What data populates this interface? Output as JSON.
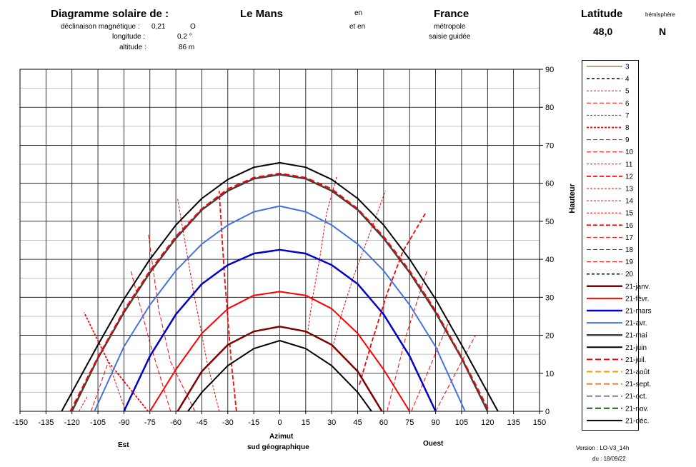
{
  "header": {
    "title": "Diagramme solaire de :",
    "city": "Le Mans",
    "en1": "en",
    "country": "France",
    "latitude_label": "Latitude",
    "hemisphere_label": "hémisphère",
    "latitude_value": "48,0",
    "hemisphere_value": "N",
    "decl_label": "déclinaison magnétique :",
    "decl_value": "0,21",
    "decl_dir": "O",
    "lon_label": "longitude :",
    "lon_value": "0,2 °",
    "alt_label": "altitude :",
    "alt_value": "86 m",
    "et_en": "et en",
    "region": "métropole",
    "saisie": "saisie guidée"
  },
  "footer": {
    "est": "Est",
    "ouest": "Ouest",
    "azimut": "Azimut",
    "sud": "sud géographique",
    "version": "Version :  LO-V3_14h",
    "du": "du :     18/09/22"
  },
  "chart_data": {
    "type": "line",
    "xlabel": "Azimut sud géographique",
    "ylabel": "Hauteur",
    "xlim": [
      -150,
      150
    ],
    "ylim": [
      0,
      90
    ],
    "xticks": [
      -150,
      -135,
      -120,
      -105,
      -90,
      -75,
      -60,
      -45,
      -30,
      -15,
      0,
      15,
      30,
      45,
      60,
      75,
      90,
      105,
      120,
      135,
      150
    ],
    "yticks": [
      0,
      10,
      20,
      30,
      40,
      50,
      60,
      70,
      80,
      90
    ],
    "legend_position": "right",
    "grid": true,
    "day_curves": [
      {
        "name": "21-janv.",
        "color": "#7f0000",
        "dash": "",
        "width": 2.5,
        "x": [
          -59,
          -45,
          -30,
          -15,
          0,
          15,
          30,
          45,
          59
        ],
        "y": [
          0,
          10.5,
          17.5,
          21,
          22.3,
          21,
          17.5,
          10.5,
          0
        ]
      },
      {
        "name": "21-févr.",
        "color": "#ff0000",
        "dash": "",
        "width": 2,
        "x": [
          -75,
          -60,
          -45,
          -30,
          -15,
          0,
          15,
          30,
          45,
          60,
          75
        ],
        "y": [
          0,
          11,
          20.5,
          27,
          30.5,
          31.5,
          30.5,
          27,
          20.5,
          11,
          0
        ]
      },
      {
        "name": "21-mars",
        "color": "#0000cc",
        "dash": "",
        "width": 2.5,
        "x": [
          -90,
          -75,
          -60,
          -45,
          -30,
          -15,
          0,
          15,
          30,
          45,
          60,
          75,
          90
        ],
        "y": [
          0,
          14.5,
          25.5,
          33.5,
          38.5,
          41.5,
          42.5,
          41.5,
          38.5,
          33.5,
          25.5,
          14.5,
          0
        ]
      },
      {
        "name": "21-avr.",
        "color": "#4472e0",
        "dash": "",
        "width": 2,
        "x": [
          -107,
          -90,
          -75,
          -60,
          -45,
          -30,
          -15,
          0,
          15,
          30,
          45,
          60,
          75,
          90,
          107
        ],
        "y": [
          0,
          17,
          28,
          37,
          44,
          49,
          52.5,
          54,
          52.5,
          49,
          44,
          37,
          28,
          17,
          0
        ]
      },
      {
        "name": "21-mai",
        "color": "#404040",
        "dash": "",
        "width": 2.5,
        "x": [
          -120,
          -105,
          -90,
          -75,
          -60,
          -45,
          -30,
          -15,
          0,
          15,
          30,
          45,
          60,
          75,
          90,
          105,
          120
        ],
        "y": [
          0,
          14,
          26,
          36.5,
          45.5,
          53,
          58,
          61.2,
          62.3,
          61.2,
          58,
          53,
          45.5,
          36.5,
          26,
          14,
          0
        ]
      },
      {
        "name": "21-juin",
        "color": "#000000",
        "dash": "",
        "width": 2,
        "x": [
          -126,
          -105,
          -90,
          -75,
          -60,
          -45,
          -30,
          -15,
          0,
          15,
          30,
          45,
          60,
          75,
          90,
          105,
          126
        ],
        "y": [
          0,
          17.5,
          29.5,
          40,
          49,
          56,
          61,
          64.2,
          65.4,
          64.2,
          61,
          56,
          49,
          40,
          29.5,
          17.5,
          0
        ]
      },
      {
        "name": "21-juil.",
        "color": "#ff0000",
        "dash": "8 4",
        "width": 2,
        "x": [
          -121,
          -105,
          -90,
          -75,
          -60,
          -45,
          -30,
          -15,
          0,
          15,
          30,
          45,
          60,
          75,
          90,
          105,
          121
        ],
        "y": [
          0,
          14.3,
          26.5,
          37,
          46,
          53.3,
          58.5,
          61.5,
          62.6,
          61.5,
          58.5,
          53.3,
          46,
          37,
          26.5,
          14.3,
          0
        ]
      },
      {
        "name": "21-août",
        "color": "#ff9900",
        "dash": "8 4",
        "width": 2,
        "x": [],
        "y": []
      },
      {
        "name": "21-sept.",
        "color": "#ed7d31",
        "dash": "8 4",
        "width": 2,
        "x": [],
        "y": []
      },
      {
        "name": "21-oct.",
        "color": "#7f7faa",
        "dash": "8 4",
        "width": 2,
        "x": [],
        "y": []
      },
      {
        "name": "21-nov.",
        "color": "#1e5a1e",
        "dash": "8 4",
        "width": 2,
        "x": [],
        "y": []
      },
      {
        "name": "21-déc.",
        "color": "#000000",
        "dash": "",
        "width": 2,
        "x": [
          -53,
          -45,
          -30,
          -15,
          0,
          15,
          30,
          45,
          53
        ],
        "y": [
          0,
          5,
          12,
          16.5,
          18.6,
          16.5,
          12,
          5,
          0
        ]
      }
    ],
    "hour_lines": [
      {
        "name": "3",
        "color": "#7f4000",
        "dash": "",
        "width": 1,
        "x": [],
        "y": []
      },
      {
        "name": "4",
        "color": "#000000",
        "dash": "4 3",
        "width": 1.5,
        "x": [],
        "y": []
      },
      {
        "name": "5",
        "color": "#ff0000",
        "dash": "3 2",
        "width": 1,
        "x": [
          -116,
          -111
        ],
        "y": [
          0,
          4
        ]
      },
      {
        "name": "6",
        "color": "#ff0000",
        "dash": "6 3",
        "width": 1,
        "x": [
          -109,
          -99
        ],
        "y": [
          0,
          13
        ]
      },
      {
        "name": "7",
        "color": "#ff0000",
        "dash": "3 2",
        "width": 1,
        "x": [
          -89,
          -99
        ],
        "y": [
          0,
          13
        ]
      },
      {
        "name": "8",
        "color": "#ff0000",
        "dash": "3 2",
        "width": 1.8,
        "x": [
          -76,
          -99,
          -113
        ],
        "y": [
          0,
          13,
          26
        ]
      },
      {
        "name": "9",
        "color": "#ff0000",
        "dash": "6 3",
        "width": 1,
        "x": [
          -63,
          -75,
          -86
        ],
        "y": [
          0,
          18,
          37
        ]
      },
      {
        "name": "10",
        "color": "#ff0000",
        "dash": "6 3",
        "width": 1,
        "x": [
          -49,
          -63,
          -70,
          -76
        ],
        "y": [
          0,
          13,
          27,
          47
        ]
      },
      {
        "name": "11",
        "color": "#ff0000",
        "dash": "3 2",
        "width": 1,
        "x": [
          -35,
          -42,
          -50,
          -59
        ],
        "y": [
          0,
          13,
          32,
          56
        ]
      },
      {
        "name": "12",
        "color": "#ff0000",
        "dash": "6 3",
        "width": 1.8,
        "x": [
          -25,
          -28,
          -32,
          -35
        ],
        "y": [
          0,
          13,
          36,
          58
        ]
      },
      {
        "name": "13",
        "color": "#ff0000",
        "dash": "3 2",
        "width": 1,
        "x": [
          0,
          0,
          0,
          0,
          0,
          0
        ],
        "y": [
          18.6,
          22.3,
          31.5,
          42.5,
          54,
          65.4
        ]
      },
      {
        "name": "14",
        "color": "#ff0000",
        "dash": "3 2",
        "width": 1,
        "x": [
          16,
          19,
          23,
          27,
          33
        ],
        "y": [
          20.5,
          30,
          40,
          52,
          62
        ]
      },
      {
        "name": "15",
        "color": "#ff0000",
        "dash": "3 2",
        "width": 1,
        "x": [
          30,
          36,
          43,
          53,
          61
        ],
        "y": [
          16,
          26,
          36,
          48,
          58
        ]
      },
      {
        "name": "16",
        "color": "#ff0000",
        "dash": "6 3",
        "width": 1.8,
        "x": [
          46,
          53,
          62,
          71,
          84
        ],
        "y": [
          7,
          18,
          31,
          42,
          52
        ]
      },
      {
        "name": "17",
        "color": "#ff0000",
        "dash": "6 3",
        "width": 1,
        "x": [
          62,
          73,
          85
        ],
        "y": [
          0,
          20,
          37
        ]
      },
      {
        "name": "18",
        "color": "#ff0000",
        "dash": "6 3",
        "width": 1,
        "x": [
          76,
          98
        ],
        "y": [
          0,
          24
        ]
      },
      {
        "name": "19",
        "color": "#ff0000",
        "dash": "6 3",
        "width": 1,
        "x": [
          90,
          113
        ],
        "y": [
          0,
          20
        ]
      },
      {
        "name": "20",
        "color": "#000000",
        "dash": "4 3",
        "width": 1.5,
        "x": [],
        "y": []
      }
    ]
  }
}
